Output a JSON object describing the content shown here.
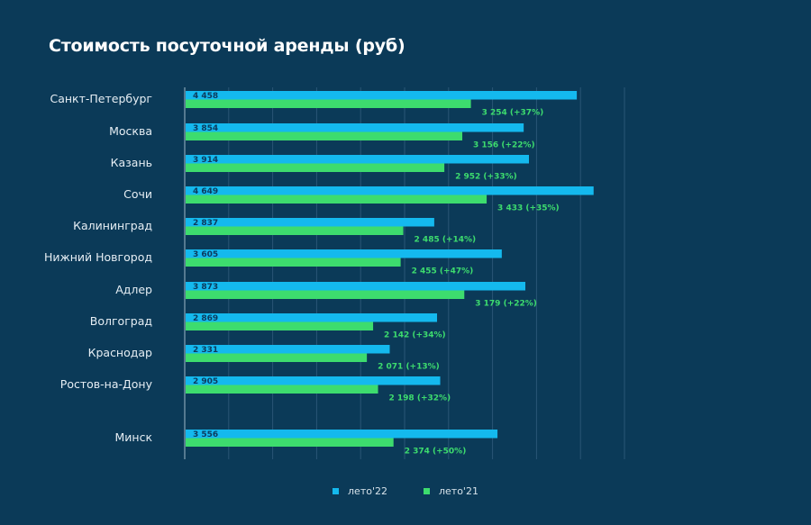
{
  "chart_data": {
    "type": "bar",
    "orientation": "horizontal",
    "title": "Стоимость посуточной аренды (руб)",
    "xlabel": "",
    "ylabel": "",
    "xlim": [
      0,
      5000
    ],
    "x_grid_step": 500,
    "grid": true,
    "legend_position": "bottom",
    "categories": [
      "Санкт-Петербург",
      "Москва",
      "Казань",
      "Сочи",
      "Калининград",
      "Нижний Новгород",
      "Адлер",
      "Волгоград",
      "Краснодар",
      "Ростов-на-Дону",
      "Минск"
    ],
    "series": [
      {
        "name": "лето'22",
        "color": "#14b9ee",
        "values": [
          4458,
          3854,
          3914,
          4649,
          2837,
          3605,
          3873,
          2869,
          2331,
          2905,
          3556
        ],
        "labels": [
          "4 458",
          "3 854",
          "3 914",
          "4 649",
          "2 837",
          "3 605",
          "3 873",
          "2 869",
          "2 331",
          "2 905",
          "3 556"
        ]
      },
      {
        "name": "лето'21",
        "color": "#3ddc6e",
        "values": [
          3254,
          3156,
          2952,
          3433,
          2485,
          2455,
          3179,
          2142,
          2071,
          2198,
          2374
        ],
        "labels": [
          "3 254 (+37%)",
          "3 156 (+22%)",
          "2 952 (+33%)",
          "3 433 (+35%)",
          "2 485 (+14%)",
          "2 455 (+47%)",
          "3 179 (+22%)",
          "2 142 (+34%)",
          "2 071 (+13%)",
          "2 198 (+32%)",
          "2 374 (+50%)"
        ]
      }
    ]
  },
  "colors": {
    "background": "#0b3a58",
    "gridline": "#2a5676",
    "axis": "#9fb8c8"
  }
}
